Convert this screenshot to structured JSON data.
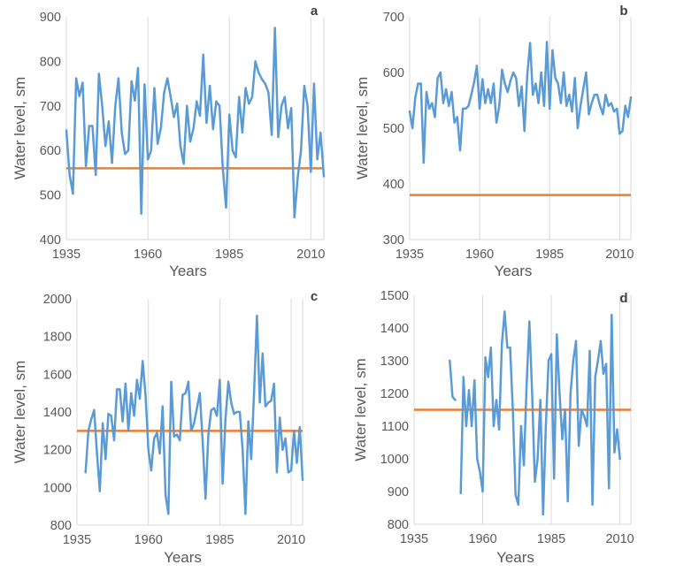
{
  "colors": {
    "series": "#5b9bd5",
    "threshold": "#ed7d31",
    "grid": "#d9d9d9",
    "text": "#595959"
  },
  "chart_data": [
    {
      "panel": "a",
      "type": "line",
      "xlabel": "Years",
      "ylabel": "Water level, sm",
      "xlim": [
        1935,
        2014
      ],
      "ylim": [
        400,
        900
      ],
      "xticks": [
        1935,
        1960,
        1985,
        2010
      ],
      "yticks": [
        400,
        500,
        600,
        700,
        800,
        900
      ],
      "grid": "vertical",
      "threshold": 560,
      "x": [
        1935,
        1936,
        1937,
        1938,
        1939,
        1940,
        1941,
        1942,
        1943,
        1944,
        1945,
        1946,
        1947,
        1948,
        1949,
        1950,
        1951,
        1952,
        1953,
        1954,
        1955,
        1956,
        1957,
        1958,
        1959,
        1960,
        1961,
        1962,
        1963,
        1964,
        1965,
        1966,
        1967,
        1968,
        1969,
        1970,
        1971,
        1972,
        1973,
        1974,
        1975,
        1976,
        1977,
        1978,
        1979,
        1980,
        1981,
        1982,
        1983,
        1984,
        1985,
        1986,
        1987,
        1988,
        1989,
        1990,
        1991,
        1992,
        1993,
        1994,
        1995,
        1996,
        1997,
        1998,
        1999,
        2000,
        2001,
        2002,
        2003,
        2004,
        2005,
        2006,
        2007,
        2008,
        2009,
        2010,
        2011,
        2012,
        2013,
        2014
      ],
      "y": [
        645,
        545,
        503,
        762,
        722,
        752,
        565,
        655,
        655,
        545,
        772,
        700,
        610,
        665,
        572,
        700,
        762,
        640,
        592,
        600,
        755,
        712,
        785,
        458,
        748,
        580,
        600,
        740,
        615,
        650,
        730,
        762,
        720,
        675,
        705,
        610,
        570,
        700,
        620,
        650,
        710,
        678,
        815,
        662,
        745,
        648,
        710,
        700,
        560,
        472,
        680,
        600,
        585,
        720,
        640,
        740,
        705,
        720,
        800,
        775,
        760,
        750,
        730,
        635,
        875,
        630,
        700,
        720,
        650,
        695,
        450,
        540,
        600,
        745,
        700,
        552,
        750,
        580,
        640,
        542
      ]
    },
    {
      "panel": "b",
      "type": "line",
      "xlabel": "Years",
      "ylabel": "Water level, sm",
      "xlim": [
        1935,
        2014
      ],
      "ylim": [
        300,
        700
      ],
      "xticks": [
        1935,
        1960,
        1985,
        2010
      ],
      "yticks": [
        300,
        400,
        500,
        600,
        700
      ],
      "grid": "vertical",
      "threshold": 380,
      "x": [
        1935,
        1936,
        1937,
        1938,
        1939,
        1940,
        1941,
        1942,
        1943,
        1944,
        1945,
        1946,
        1947,
        1948,
        1949,
        1950,
        1951,
        1952,
        1953,
        1954,
        1955,
        1956,
        1957,
        1958,
        1959,
        1960,
        1961,
        1962,
        1963,
        1964,
        1965,
        1966,
        1967,
        1968,
        1969,
        1970,
        1971,
        1972,
        1973,
        1974,
        1975,
        1976,
        1977,
        1978,
        1979,
        1980,
        1981,
        1982,
        1983,
        1984,
        1985,
        1986,
        1987,
        1988,
        1989,
        1990,
        1991,
        1992,
        1993,
        1994,
        1995,
        1996,
        1997,
        1998,
        1999,
        2000,
        2001,
        2002,
        2003,
        2004,
        2005,
        2006,
        2007,
        2008,
        2009,
        2010,
        2011,
        2012,
        2013,
        2014
      ],
      "y": [
        530,
        500,
        555,
        580,
        580,
        438,
        565,
        535,
        545,
        520,
        590,
        600,
        545,
        570,
        540,
        565,
        510,
        520,
        460,
        535,
        535,
        540,
        560,
        582,
        612,
        535,
        588,
        545,
        570,
        545,
        580,
        510,
        540,
        605,
        580,
        565,
        585,
        600,
        590,
        540,
        575,
        495,
        595,
        653,
        560,
        580,
        545,
        600,
        540,
        655,
        535,
        640,
        590,
        580,
        545,
        600,
        540,
        560,
        530,
        590,
        500,
        540,
        570,
        600,
        525,
        545,
        560,
        560,
        540,
        525,
        560,
        540,
        545,
        530,
        535,
        490,
        495,
        540,
        520,
        555
      ]
    },
    {
      "panel": "c",
      "type": "line",
      "xlabel": "Years",
      "ylabel": "Water level, sm",
      "xlim": [
        1935,
        2014
      ],
      "ylim": [
        800,
        2000
      ],
      "xticks": [
        1935,
        1960,
        1985,
        2010
      ],
      "yticks": [
        800,
        1000,
        1200,
        1400,
        1600,
        1800,
        2000
      ],
      "grid": "vertical",
      "threshold": 1300,
      "x": [
        1938,
        1939,
        1940,
        1941,
        1942,
        1943,
        1944,
        1945,
        1946,
        1947,
        1948,
        1949,
        1950,
        1951,
        1952,
        1953,
        1954,
        1955,
        1956,
        1957,
        1958,
        1959,
        1960,
        1961,
        1962,
        1963,
        1964,
        1965,
        1966,
        1967,
        1968,
        1969,
        1970,
        1971,
        1972,
        1973,
        1974,
        1975,
        1976,
        1977,
        1978,
        1979,
        1980,
        1981,
        1982,
        1983,
        1984,
        1985,
        1986,
        1987,
        1988,
        1989,
        1990,
        1991,
        1992,
        1993,
        1994,
        1995,
        1996,
        1997,
        1998,
        1999,
        2000,
        2001,
        2002,
        2003,
        2004,
        2005,
        2006,
        2007,
        2008,
        2009,
        2010,
        2011,
        2012,
        2013,
        2014
      ],
      "y": [
        1080,
        1300,
        1360,
        1410,
        1180,
        980,
        1340,
        1150,
        1390,
        1380,
        1250,
        1520,
        1520,
        1350,
        1550,
        1300,
        1500,
        1380,
        1570,
        1470,
        1670,
        1490,
        1200,
        1090,
        1260,
        1290,
        1180,
        1430,
        960,
        860,
        1560,
        1270,
        1280,
        1250,
        1490,
        1500,
        1560,
        1300,
        1340,
        1420,
        1500,
        1250,
        940,
        1280,
        1410,
        1420,
        1380,
        1570,
        1020,
        1360,
        1560,
        1450,
        1390,
        1400,
        1400,
        1200,
        860,
        1350,
        1150,
        1500,
        1910,
        1450,
        1710,
        1430,
        1450,
        1460,
        1550,
        1080,
        1370,
        1200,
        1260,
        1080,
        1090,
        1300,
        1130,
        1320,
        1040
      ]
    },
    {
      "panel": "d",
      "type": "line",
      "xlabel": "Years",
      "ylabel": "Water level, sm",
      "xlim": [
        1935,
        2014
      ],
      "ylim": [
        800,
        1500
      ],
      "xticks": [
        1935,
        1960,
        1985,
        2010
      ],
      "yticks": [
        800,
        900,
        1000,
        1100,
        1200,
        1300,
        1400,
        1500
      ],
      "grid": "vertical",
      "threshold": 1150,
      "x": [
        1948,
        1949,
        1950,
        1951,
        1952,
        1953,
        1954,
        1955,
        1956,
        1957,
        1958,
        1959,
        1960,
        1961,
        1962,
        1963,
        1964,
        1965,
        1966,
        1967,
        1968,
        1969,
        1970,
        1971,
        1972,
        1973,
        1974,
        1975,
        1976,
        1977,
        1978,
        1979,
        1980,
        1981,
        1982,
        1983,
        1984,
        1985,
        1986,
        1987,
        1988,
        1989,
        1990,
        1991,
        1992,
        1993,
        1994,
        1995,
        1996,
        1997,
        1998,
        1999,
        2000,
        2001,
        2002,
        2003,
        2004,
        2005,
        2006,
        2007,
        2008,
        2009,
        2010,
        2011,
        2012,
        2013,
        2014
      ],
      "y": [
        1300,
        1190,
        1180,
        null,
        895,
        1250,
        1100,
        1210,
        1100,
        1240,
        1000,
        960,
        900,
        1310,
        1250,
        1340,
        1100,
        1180,
        1090,
        1350,
        1450,
        1340,
        1340,
        1150,
        890,
        860,
        1100,
        980,
        1230,
        1420,
        1200,
        930,
        1000,
        1180,
        830,
        1100,
        1300,
        1320,
        940,
        1380,
        1200,
        1060,
        1150,
        870,
        1200,
        1300,
        1360,
        1040,
        1150,
        1130,
        1100,
        1330,
        860,
        1250,
        1300,
        1360,
        1260,
        1290,
        910,
        1440,
        1020,
        1090,
        1000,
        null,
        null,
        null,
        null
      ]
    }
  ],
  "panels": [
    {
      "letter": "a"
    },
    {
      "letter": "b"
    },
    {
      "letter": "c"
    },
    {
      "letter": "d"
    }
  ]
}
